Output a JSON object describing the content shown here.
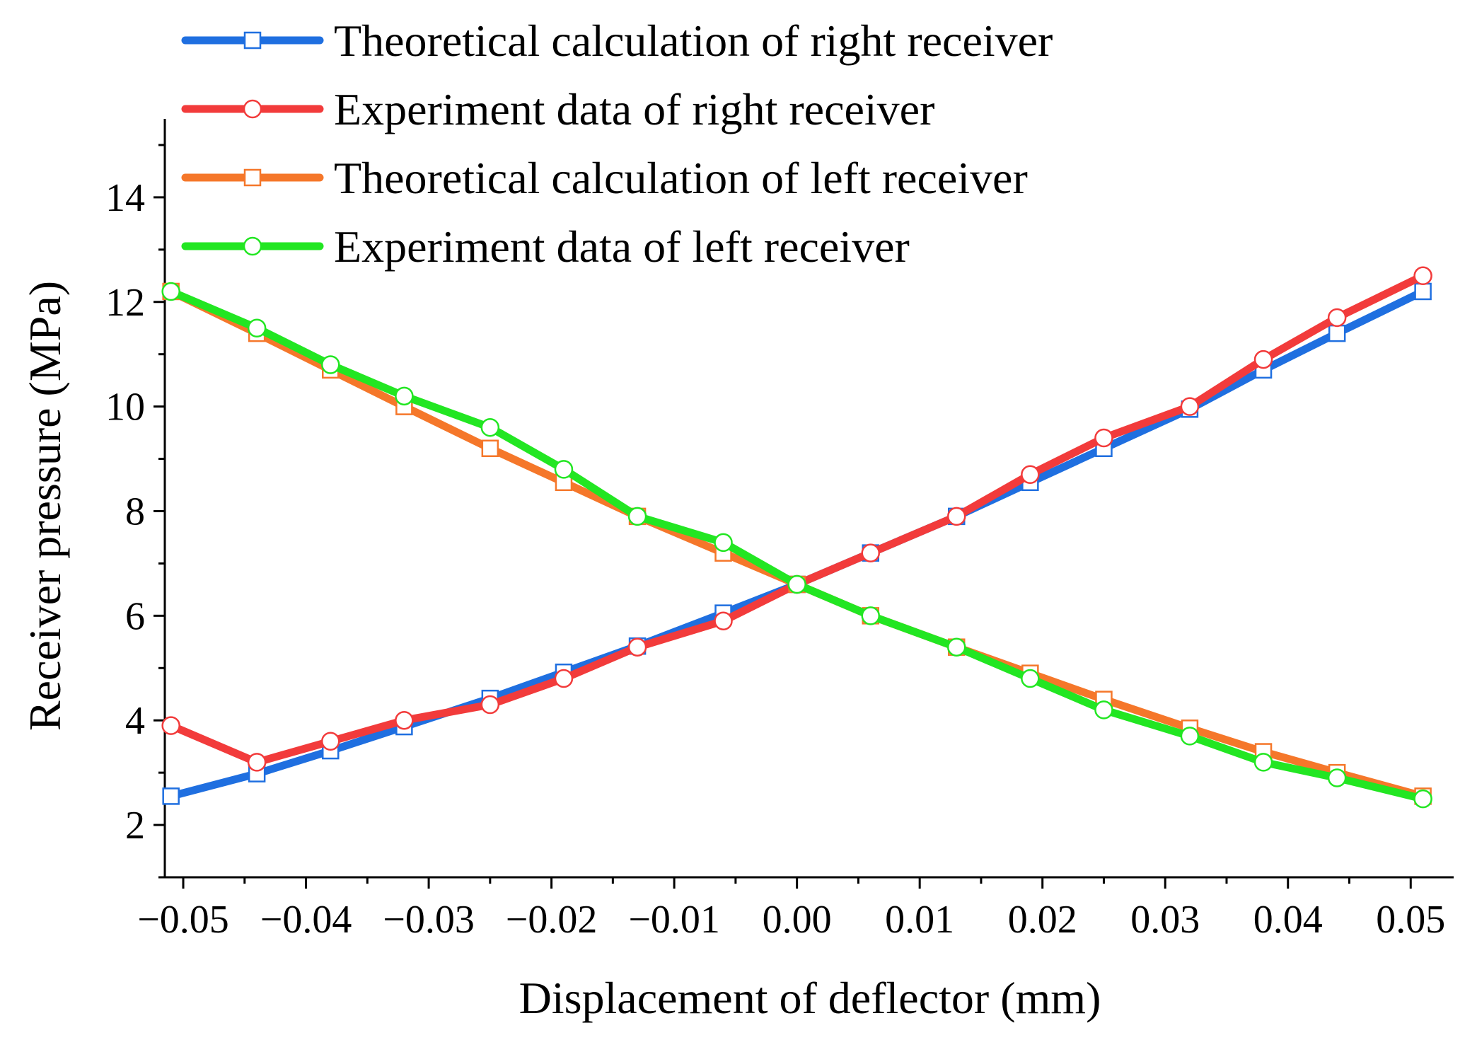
{
  "chart_data": {
    "type": "line",
    "title": "",
    "xlabel": "Displacement of deflector (mm)",
    "ylabel": "Receiver pressure (MPa)",
    "xlim": [
      -0.0515,
      0.0535
    ],
    "ylim": [
      1,
      15.5
    ],
    "xticks": [
      -0.05,
      -0.04,
      -0.03,
      -0.02,
      -0.01,
      0.0,
      0.01,
      0.02,
      0.03,
      0.04,
      0.05
    ],
    "xtick_labels": [
      "−0.05",
      "−0.04",
      "−0.03",
      "−0.02",
      "−0.01",
      "0.00",
      "0.01",
      "0.02",
      "0.03",
      "0.04",
      "0.05"
    ],
    "yticks": [
      2,
      4,
      6,
      8,
      10,
      12,
      14
    ],
    "ytick_labels": [
      "2",
      "4",
      "6",
      "8",
      "10",
      "12",
      "14"
    ],
    "grid": false,
    "legend_position": "top",
    "x": [
      -0.051,
      -0.044,
      -0.038,
      -0.032,
      -0.025,
      -0.019,
      -0.013,
      -0.006,
      0.0,
      0.006,
      0.013,
      0.019,
      0.025,
      0.032,
      0.038,
      0.044,
      0.051
    ],
    "series": [
      {
        "name": "Theoretical calculation of right receiver",
        "color": "#1f6fe0",
        "marker": "square",
        "values": [
          2.55,
          2.98,
          3.42,
          3.88,
          4.42,
          4.92,
          5.42,
          6.05,
          6.6,
          7.2,
          7.9,
          8.55,
          9.2,
          9.95,
          10.7,
          11.4,
          12.2
        ]
      },
      {
        "name": "Experiment data of right receiver",
        "color": "#f23b3b",
        "marker": "circle",
        "values": [
          3.9,
          3.2,
          3.6,
          4.0,
          4.3,
          4.8,
          5.4,
          5.9,
          6.6,
          7.2,
          7.9,
          8.7,
          9.4,
          10.0,
          10.9,
          11.7,
          12.5
        ]
      },
      {
        "name": "Theoretical calculation of left receiver",
        "color": "#f5772a",
        "marker": "square",
        "values": [
          12.2,
          11.4,
          10.7,
          10.0,
          9.2,
          8.55,
          7.9,
          7.2,
          6.6,
          6.0,
          5.4,
          4.9,
          4.4,
          3.85,
          3.4,
          3.0,
          2.55
        ]
      },
      {
        "name": "Experiment data of left receiver",
        "color": "#22e622",
        "marker": "circle",
        "values": [
          12.2,
          11.5,
          10.8,
          10.2,
          9.6,
          8.8,
          7.9,
          7.4,
          6.6,
          6.0,
          5.4,
          4.8,
          4.2,
          3.7,
          3.2,
          2.9,
          2.5
        ]
      }
    ]
  }
}
